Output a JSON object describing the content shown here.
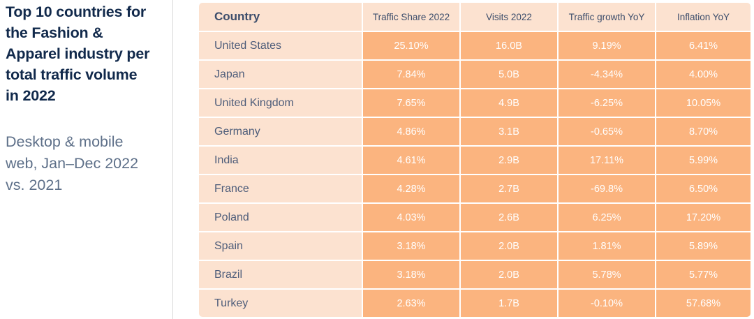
{
  "panel": {
    "title": "Top 10 countries for the Fashion & Apparel industry per total traffic volume in 2022",
    "subtitle": "Desktop & mobile web, Jan–Dec 2022 vs. 2021"
  },
  "chart_data": {
    "type": "table",
    "title": "Top 10 countries for the Fashion & Apparel industry per total traffic volume in 2022",
    "subtitle": "Desktop & mobile web, Jan–Dec 2022 vs. 2021",
    "columns": [
      "Country",
      "Traffic Share 2022",
      "Visits 2022",
      "Traffic growth YoY",
      "Inflation YoY"
    ],
    "rows": [
      [
        "United States",
        "25.10%",
        "16.0B",
        "9.19%",
        "6.41%"
      ],
      [
        "Japan",
        "7.84%",
        "5.0B",
        "-4.34%",
        "4.00%"
      ],
      [
        "United Kingdom",
        "7.65%",
        "4.9B",
        "-6.25%",
        "10.05%"
      ],
      [
        "Germany",
        "4.86%",
        "3.1B",
        "-0.65%",
        "8.70%"
      ],
      [
        "India",
        "4.61%",
        "2.9B",
        "17.11%",
        "5.99%"
      ],
      [
        "France",
        "4.28%",
        "2.7B",
        "-69.8%",
        "6.50%"
      ],
      [
        "Poland",
        "4.03%",
        "2.6B",
        "6.25%",
        "17.20%"
      ],
      [
        "Spain",
        "3.18%",
        "2.0B",
        "1.81%",
        "5.89%"
      ],
      [
        "Brazil",
        "3.18%",
        "2.0B",
        "5.78%",
        "5.77%"
      ],
      [
        "Turkey",
        "2.63%",
        "1.7B",
        "-0.10%",
        "57.68%"
      ]
    ]
  },
  "colors": {
    "light_cell": "#fce2d0",
    "value_cell": "#fbb47f",
    "title_text": "#11294b",
    "header_label": "#3c4d6b",
    "country_text": "#4e5d7a",
    "subtitle_text": "#5e7089",
    "value_text": "#ffffff",
    "divider": "#d9d9d9",
    "page_bg": "#ffffff"
  }
}
